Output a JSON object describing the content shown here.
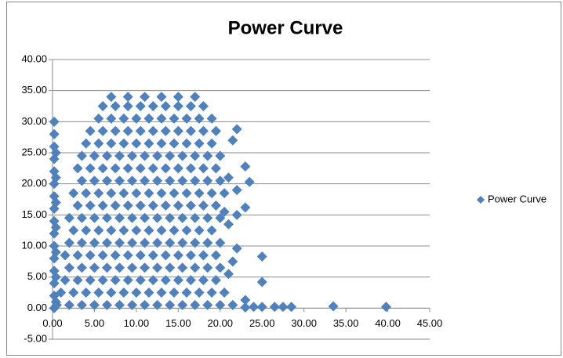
{
  "chart_data": {
    "type": "scatter",
    "title": "Power Curve",
    "series": [
      {
        "name": "Power Curve",
        "color": "#4f81bd",
        "x": [
          7,
          9,
          11,
          13,
          15,
          17,
          6,
          7.5,
          9,
          10.5,
          12,
          13.5,
          15,
          16.5,
          18,
          5.5,
          7,
          8.5,
          10,
          11.5,
          13,
          14.5,
          16,
          17.5,
          19,
          4.5,
          6,
          7.5,
          9,
          10.5,
          12,
          13.5,
          15,
          16.5,
          18,
          19.5,
          4,
          5.5,
          7,
          8.5,
          10,
          11.5,
          13,
          14.5,
          16,
          17.5,
          19,
          3.5,
          5,
          6.5,
          8,
          9.5,
          11,
          12.5,
          14,
          15.5,
          17,
          18.5,
          20,
          3,
          4.5,
          6,
          7.5,
          9,
          10.5,
          12,
          13.5,
          15,
          16.5,
          18,
          19.5,
          3.5,
          5,
          6.5,
          8,
          9.5,
          11,
          12.5,
          14,
          15.5,
          17,
          18.5,
          20,
          2.5,
          4,
          5.5,
          7,
          8.5,
          10,
          11.5,
          13,
          14.5,
          16,
          17.5,
          19,
          20.5,
          3,
          4.5,
          6,
          7.5,
          9,
          10.5,
          12,
          13.5,
          15,
          16.5,
          18,
          19.5,
          2,
          3.5,
          5,
          6.5,
          8,
          9.5,
          11,
          12.5,
          14,
          15.5,
          17,
          18.5,
          20,
          2.5,
          4,
          5.5,
          7,
          8.5,
          10,
          11.5,
          13,
          14.5,
          16,
          17.5,
          19,
          2,
          3.5,
          5,
          6.5,
          8,
          9.5,
          11,
          12.5,
          14,
          15.5,
          17,
          18.5,
          20,
          1.5,
          3,
          4.5,
          6,
          7.5,
          9,
          10.5,
          12,
          13.5,
          15,
          16.5,
          18,
          19.5,
          2,
          3.5,
          5,
          6.5,
          8,
          9.5,
          11,
          12.5,
          14,
          15.5,
          17,
          18.5,
          20,
          1.5,
          3,
          4.5,
          6,
          7.5,
          9,
          10.5,
          12,
          13.5,
          15,
          16.5,
          18,
          19.5,
          1,
          2.5,
          4,
          5.5,
          7,
          8.5,
          10,
          11.5,
          13,
          14.5,
          16,
          17.5,
          19,
          20.5,
          0.5,
          2,
          3.5,
          5,
          6.5,
          8,
          9.5,
          11,
          12.5,
          14,
          15.5,
          17,
          18.5,
          20,
          21.5,
          0.2,
          0.2,
          0.2,
          0.2,
          0.2,
          0.2,
          0.2,
          0.2,
          0.2,
          0.2,
          0.2,
          0.2,
          0.2,
          0.2,
          0.2,
          0.2,
          0.4,
          0.4,
          0.4,
          0.4,
          0.4,
          0.4,
          0.4,
          22,
          21.5,
          23,
          23.5,
          22,
          21,
          20.5,
          22,
          23,
          21,
          22,
          21.5,
          25,
          25,
          21,
          23,
          24,
          25,
          26.5,
          27.5,
          28.5,
          33.5,
          39.8,
          23
        ],
        "values": [
          34,
          34,
          34,
          34,
          34,
          34,
          32.5,
          32.5,
          32.5,
          32.5,
          32.5,
          32.5,
          32.5,
          32.5,
          32.5,
          30.5,
          30.5,
          30.5,
          30.5,
          30.5,
          30.5,
          30.5,
          30.5,
          30.5,
          30.5,
          28.5,
          28.5,
          28.5,
          28.5,
          28.5,
          28.5,
          28.5,
          28.5,
          28.5,
          28.5,
          28.5,
          26.5,
          26.5,
          26.5,
          26.5,
          26.5,
          26.5,
          26.5,
          26.5,
          26.5,
          26.5,
          26.5,
          24.5,
          24.5,
          24.5,
          24.5,
          24.5,
          24.5,
          24.5,
          24.5,
          24.5,
          24.5,
          24.5,
          24.5,
          22.5,
          22.5,
          22.5,
          22.5,
          22.5,
          22.5,
          22.5,
          22.5,
          22.5,
          22.5,
          22.5,
          22.5,
          20.5,
          20.5,
          20.5,
          20.5,
          20.5,
          20.5,
          20.5,
          20.5,
          20.5,
          20.5,
          20.5,
          20.5,
          18.5,
          18.5,
          18.5,
          18.5,
          18.5,
          18.5,
          18.5,
          18.5,
          18.5,
          18.5,
          18.5,
          18.5,
          18.5,
          16.5,
          16.5,
          16.5,
          16.5,
          16.5,
          16.5,
          16.5,
          16.5,
          16.5,
          16.5,
          16.5,
          16.5,
          14.5,
          14.5,
          14.5,
          14.5,
          14.5,
          14.5,
          14.5,
          14.5,
          14.5,
          14.5,
          14.5,
          14.5,
          14.5,
          12.5,
          12.5,
          12.5,
          12.5,
          12.5,
          12.5,
          12.5,
          12.5,
          12.5,
          12.5,
          12.5,
          12.5,
          10.5,
          10.5,
          10.5,
          10.5,
          10.5,
          10.5,
          10.5,
          10.5,
          10.5,
          10.5,
          10.5,
          10.5,
          10.5,
          8.5,
          8.5,
          8.5,
          8.5,
          8.5,
          8.5,
          8.5,
          8.5,
          8.5,
          8.5,
          8.5,
          8.5,
          8.5,
          6.5,
          6.5,
          6.5,
          6.5,
          6.5,
          6.5,
          6.5,
          6.5,
          6.5,
          6.5,
          6.5,
          6.5,
          6.5,
          4.5,
          4.5,
          4.5,
          4.5,
          4.5,
          4.5,
          4.5,
          4.5,
          4.5,
          4.5,
          4.5,
          4.5,
          4.5,
          2.5,
          2.5,
          2.5,
          2.5,
          2.5,
          2.5,
          2.5,
          2.5,
          2.5,
          2.5,
          2.5,
          2.5,
          2.5,
          2.5,
          0.5,
          0.5,
          0.5,
          0.5,
          0.5,
          0.5,
          0.5,
          0.5,
          0.5,
          0.5,
          0.5,
          0.5,
          0.5,
          0.5,
          0.5,
          0,
          2,
          4,
          6,
          8,
          10,
          12,
          14,
          16,
          18,
          20,
          22,
          24,
          26,
          28,
          30,
          1,
          5,
          9,
          13,
          17,
          21,
          25,
          28.8,
          27,
          22.8,
          20.3,
          19,
          21,
          15.5,
          15,
          16.2,
          13.5,
          9.6,
          7.5,
          8.3,
          4.2,
          5.5,
          1.3,
          0.2,
          0.2,
          0.2,
          0.2,
          0.2,
          0.3,
          0.2,
          0.1
        ]
      }
    ],
    "xlim": [
      0,
      45
    ],
    "ylim": [
      -5,
      40
    ],
    "xticks": [
      {
        "value": 0,
        "label": "0.00"
      },
      {
        "value": 5,
        "label": "5.00"
      },
      {
        "value": 10,
        "label": "10.00"
      },
      {
        "value": 15,
        "label": "15.00"
      },
      {
        "value": 20,
        "label": "20.00"
      },
      {
        "value": 25,
        "label": "25.00"
      },
      {
        "value": 30,
        "label": "30.00"
      },
      {
        "value": 35,
        "label": "35.00"
      },
      {
        "value": 40,
        "label": "40.00"
      },
      {
        "value": 45,
        "label": "45.00"
      }
    ],
    "yticks": [
      {
        "value": -5,
        "label": "-5.00"
      },
      {
        "value": 0,
        "label": "0.00"
      },
      {
        "value": 5,
        "label": "5.00"
      },
      {
        "value": 10,
        "label": "10.00"
      },
      {
        "value": 15,
        "label": "15.00"
      },
      {
        "value": 20,
        "label": "20.00"
      },
      {
        "value": 25,
        "label": "25.00"
      },
      {
        "value": 30,
        "label": "30.00"
      },
      {
        "value": 35,
        "label": "35.00"
      },
      {
        "value": 40,
        "label": "40.00"
      }
    ],
    "grid": true,
    "legend": "right"
  }
}
